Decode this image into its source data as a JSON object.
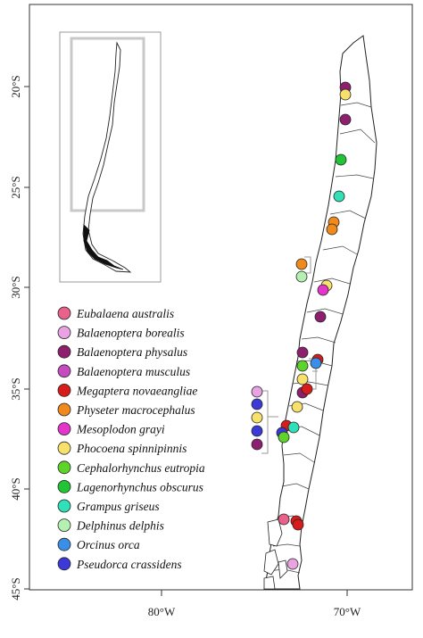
{
  "map": {
    "y_axis_ticks": [
      "20°S",
      "25°S",
      "30°S",
      "35°S",
      "40°S",
      "45°S"
    ],
    "x_axis_ticks": [
      "80°W",
      "70°W"
    ]
  },
  "legend": [
    {
      "name": "Eubalaena australis",
      "color": "#e8628a"
    },
    {
      "name": "Balaenoptera borealis",
      "color": "#e9a3e3"
    },
    {
      "name": "Balaenoptera physalus",
      "color": "#8e1f6e"
    },
    {
      "name": "Balaenoptera musculus",
      "color": "#c54cc0"
    },
    {
      "name": "Megaptera novaeangliae",
      "color": "#d81b1b"
    },
    {
      "name": "Physeter macrocephalus",
      "color": "#f08a1c"
    },
    {
      "name": "Mesoplodon grayi",
      "color": "#e534c9"
    },
    {
      "name": "Phocoena spinnipinnis",
      "color": "#f7e06b"
    },
    {
      "name": "Cephalorhynchus eutropia",
      "color": "#5ed42a"
    },
    {
      "name": "Lagenorhynchus obscurus",
      "color": "#20c434"
    },
    {
      "name": "Grampus griseus",
      "color": "#2fe0b8"
    },
    {
      "name": "Delphinus delphis",
      "color": "#b6efb2"
    },
    {
      "name": "Orcinus orca",
      "color": "#3a8ee8"
    },
    {
      "name": "Pseudorca crassidens",
      "color": "#3b3ad8"
    }
  ]
}
